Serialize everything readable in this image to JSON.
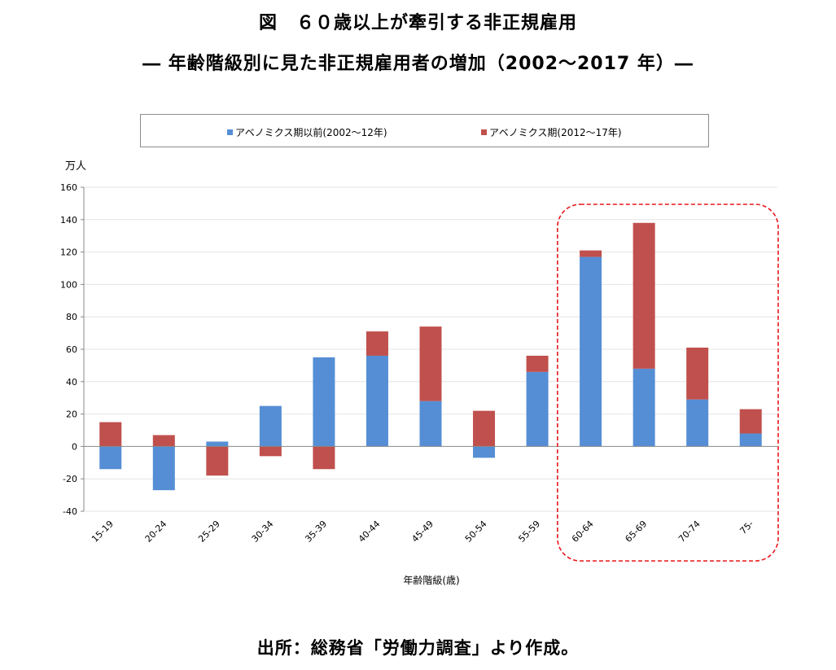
{
  "titles": {
    "main": "図　６０歳以上が牽引する非正規雇用",
    "sub": "― 年齢階級別に見た非正規雇用者の増加（2002～2017 年）―"
  },
  "source": "出所：総務省「労働力調査」より作成。",
  "colors": {
    "blue": "#558ed5",
    "red": "#c0504d",
    "highlight": "#e8161b"
  },
  "chart_data": {
    "type": "bar",
    "stacked": true,
    "unit_label": "万人",
    "xlabel": "年齢階級(歳)",
    "ylabel": "",
    "ylim": [
      -40,
      160
    ],
    "yticks": [
      -40,
      -20,
      0,
      20,
      40,
      60,
      80,
      100,
      120,
      140,
      160
    ],
    "grid": true,
    "legend_position": "top",
    "categories": [
      "15-19",
      "20-24",
      "25-29",
      "30-34",
      "35-39",
      "40-44",
      "45-49",
      "50-54",
      "55-59",
      "60-64",
      "65-69",
      "70-74",
      "75-"
    ],
    "series": [
      {
        "name": "アベノミクス期以前(2002～12年)",
        "values": [
          -14,
          -27,
          3,
          25,
          55,
          56,
          28,
          -7,
          46,
          117,
          48,
          29,
          8
        ]
      },
      {
        "name": "アベノミクス期(2012～17年)",
        "values": [
          15,
          7,
          -18,
          -6,
          -14,
          15,
          46,
          22,
          10,
          4,
          90,
          32,
          15
        ]
      }
    ],
    "highlight_categories": [
      "60-64",
      "65-69",
      "70-74",
      "75-"
    ]
  }
}
